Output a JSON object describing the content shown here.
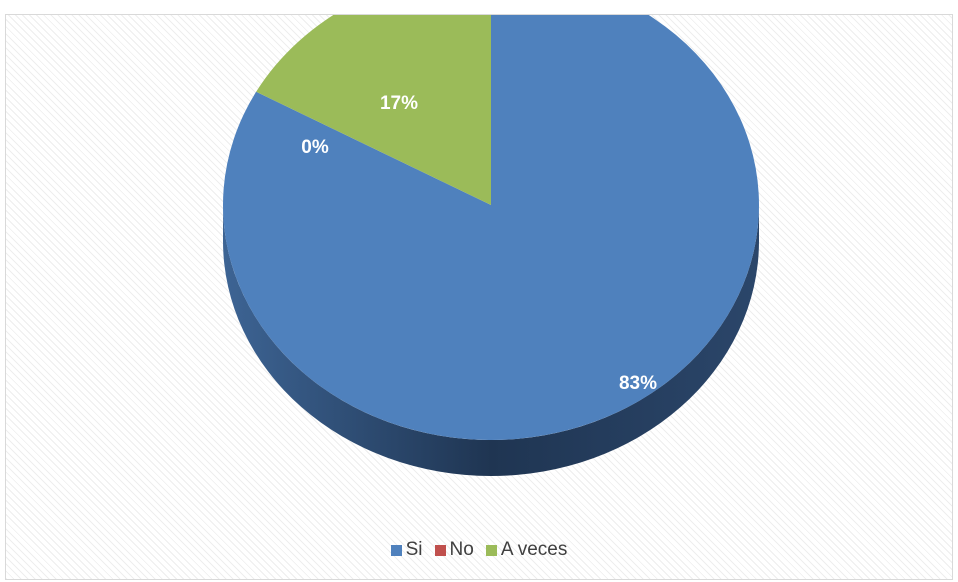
{
  "chart_data": {
    "type": "pie",
    "title": "",
    "categories": [
      "Si",
      "No",
      "A veces"
    ],
    "values": [
      83,
      0,
      17
    ],
    "value_labels": [
      "83%",
      "0%",
      "17%"
    ],
    "colors": [
      "#4f81bd",
      "#c0504d",
      "#9bbb59"
    ],
    "side_colors": [
      "#2b466a",
      "#6b2c2b",
      "#56683a"
    ],
    "style": "3d",
    "legend_position": "bottom"
  }
}
